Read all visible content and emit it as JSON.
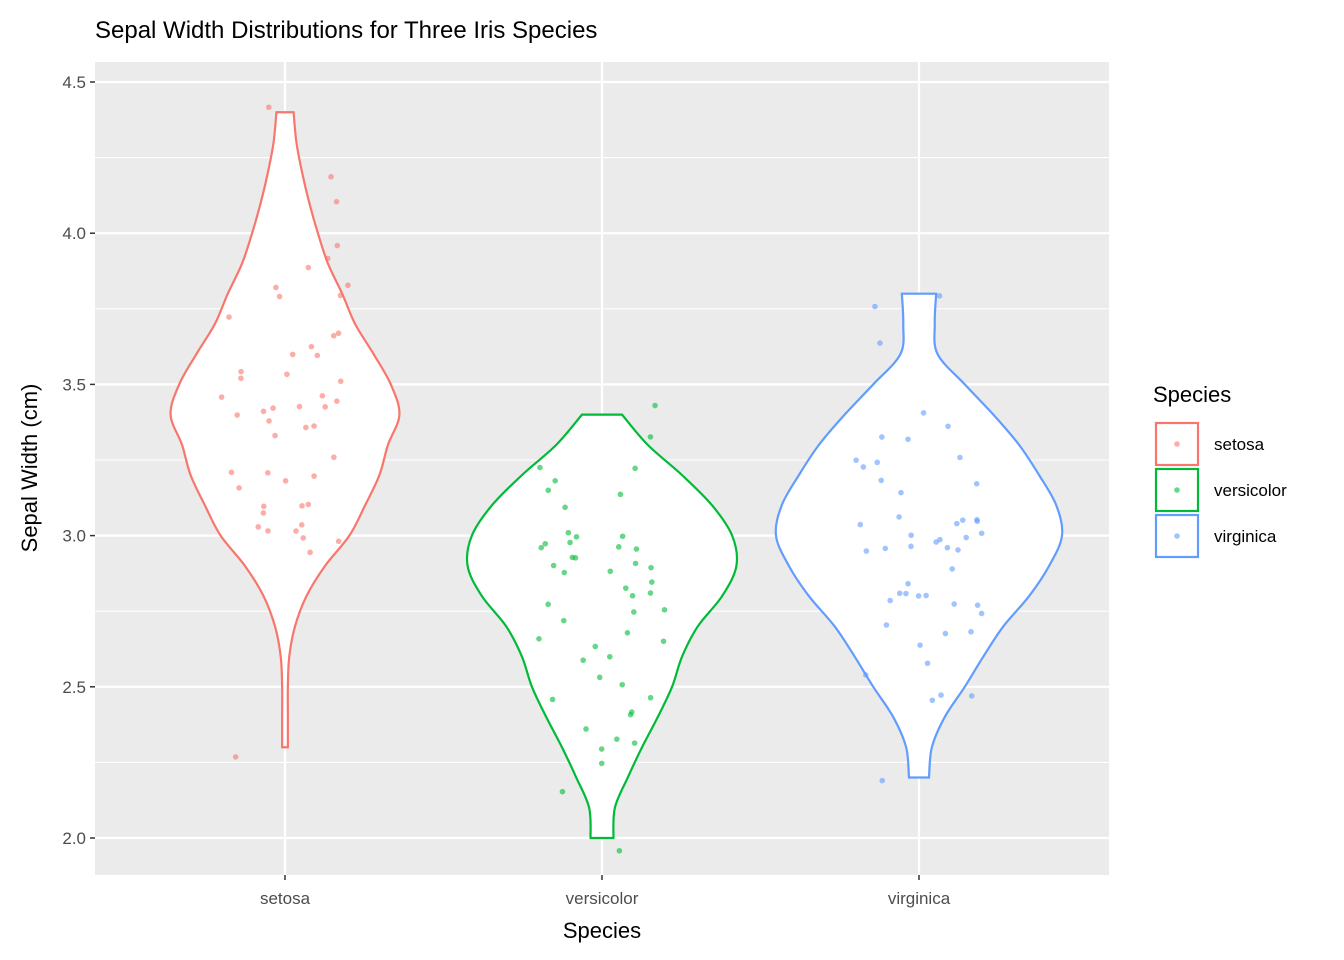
{
  "chart_data": {
    "type": "violin",
    "title": "Sepal Width Distributions for Three Iris Species",
    "xlabel": "Species",
    "ylabel": "Sepal Width (cm)",
    "ylim": [
      1.88,
      4.57
    ],
    "yticks": [
      "2.0",
      "2.5",
      "3.0",
      "3.5",
      "4.0",
      "4.5"
    ],
    "ytick_values": [
      2.0,
      2.5,
      3.0,
      3.5,
      4.0,
      4.5
    ],
    "categories": [
      "setosa",
      "versicolor",
      "virginica"
    ],
    "grid": true,
    "legend": {
      "title": "Species",
      "placement": "right",
      "entries": [
        "setosa",
        "versicolor",
        "virginica"
      ]
    },
    "colors": [
      "#F8766D",
      "#00BA38",
      "#619CFF"
    ],
    "series": [
      {
        "name": "setosa",
        "density_y": [
          2.3,
          2.4,
          2.5,
          2.6,
          2.7,
          2.8,
          2.9,
          3.0,
          3.1,
          3.2,
          3.3,
          3.4,
          3.5,
          3.6,
          3.7,
          3.8,
          3.9,
          4.0,
          4.1,
          4.2,
          4.3,
          4.4
        ],
        "density_width": [
          0.02,
          0.02,
          0.02,
          0.03,
          0.07,
          0.15,
          0.28,
          0.45,
          0.56,
          0.66,
          0.72,
          0.8,
          0.74,
          0.62,
          0.49,
          0.4,
          0.3,
          0.23,
          0.17,
          0.12,
          0.08,
          0.06
        ],
        "values": [
          3.5,
          3.0,
          3.2,
          3.1,
          3.6,
          3.9,
          3.4,
          3.4,
          2.9,
          3.1,
          3.7,
          3.4,
          3.0,
          3.0,
          4.0,
          4.4,
          3.9,
          3.5,
          3.8,
          3.8,
          3.4,
          3.7,
          3.6,
          3.3,
          3.4,
          3.0,
          3.4,
          3.5,
          3.4,
          3.2,
          3.1,
          3.4,
          4.1,
          4.2,
          3.1,
          3.2,
          3.5,
          3.6,
          3.0,
          3.4,
          3.5,
          2.3,
          3.2,
          3.5,
          3.8,
          3.0,
          3.8,
          3.2,
          3.7,
          3.3
        ]
      },
      {
        "name": "versicolor",
        "density_y": [
          2.0,
          2.1,
          2.2,
          2.3,
          2.4,
          2.5,
          2.6,
          2.7,
          2.8,
          2.9,
          3.0,
          3.1,
          3.2,
          3.3,
          3.4
        ],
        "density_width": [
          0.08,
          0.09,
          0.18,
          0.28,
          0.39,
          0.49,
          0.56,
          0.67,
          0.84,
          0.94,
          0.91,
          0.77,
          0.56,
          0.32,
          0.14
        ],
        "values": [
          3.2,
          3.2,
          3.1,
          2.3,
          2.8,
          2.8,
          3.3,
          2.4,
          2.9,
          2.7,
          2.0,
          3.0,
          2.2,
          2.9,
          2.9,
          3.1,
          3.0,
          2.7,
          2.2,
          2.5,
          3.2,
          2.8,
          2.5,
          2.8,
          2.9,
          3.0,
          2.8,
          3.0,
          2.9,
          2.6,
          2.4,
          2.4,
          2.7,
          2.7,
          3.0,
          3.4,
          3.1,
          2.3,
          3.0,
          2.5,
          2.6,
          3.0,
          2.6,
          2.3,
          2.7,
          3.0,
          2.9,
          2.9,
          2.5,
          2.8
        ]
      },
      {
        "name": "virginica",
        "density_y": [
          2.2,
          2.3,
          2.4,
          2.5,
          2.6,
          2.7,
          2.8,
          2.9,
          3.0,
          3.1,
          3.2,
          3.3,
          3.4,
          3.5,
          3.6,
          3.7,
          3.8
        ],
        "density_width": [
          0.07,
          0.09,
          0.18,
          0.32,
          0.45,
          0.59,
          0.77,
          0.91,
          1.0,
          0.96,
          0.84,
          0.7,
          0.52,
          0.32,
          0.13,
          0.11,
          0.12
        ],
        "values": [
          3.3,
          2.7,
          3.0,
          2.9,
          3.0,
          3.0,
          2.5,
          2.9,
          2.5,
          3.6,
          3.2,
          2.7,
          3.0,
          2.5,
          2.8,
          3.2,
          3.0,
          3.8,
          2.6,
          2.2,
          3.2,
          2.8,
          2.8,
          2.7,
          3.3,
          3.2,
          2.8,
          3.0,
          2.8,
          3.0,
          2.8,
          3.8,
          2.8,
          2.8,
          2.6,
          3.0,
          3.4,
          3.1,
          3.0,
          3.1,
          3.1,
          3.1,
          2.7,
          3.2,
          3.3,
          3.0,
          2.5,
          3.0,
          3.4,
          3.0
        ]
      }
    ]
  }
}
